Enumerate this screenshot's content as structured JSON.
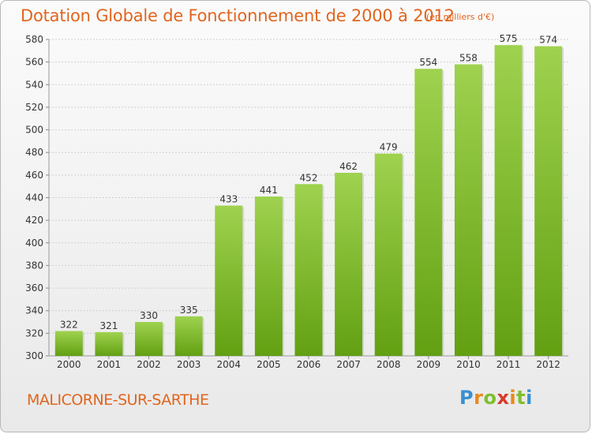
{
  "chart_data": {
    "type": "bar",
    "title": "Dotation Globale de Fonctionnement de 2000 à 2012",
    "subtitle": "(en milliers d'€)",
    "categories": [
      "2000",
      "2001",
      "2002",
      "2003",
      "2004",
      "2005",
      "2006",
      "2007",
      "2008",
      "2009",
      "2010",
      "2011",
      "2012"
    ],
    "values": [
      322,
      321,
      330,
      335,
      433,
      441,
      452,
      462,
      479,
      554,
      558,
      575,
      574
    ],
    "ylim": [
      300,
      580
    ],
    "yticks": [
      300,
      320,
      340,
      360,
      380,
      400,
      420,
      440,
      460,
      480,
      500,
      520,
      540,
      560,
      580
    ],
    "grid": true,
    "bar_color": "#7dbb2a"
  },
  "footer": {
    "town": "MALICORNE-SUR-SARTHE",
    "logo_letters": [
      "P",
      "r",
      "o",
      "x",
      "i",
      "t",
      "i"
    ]
  }
}
